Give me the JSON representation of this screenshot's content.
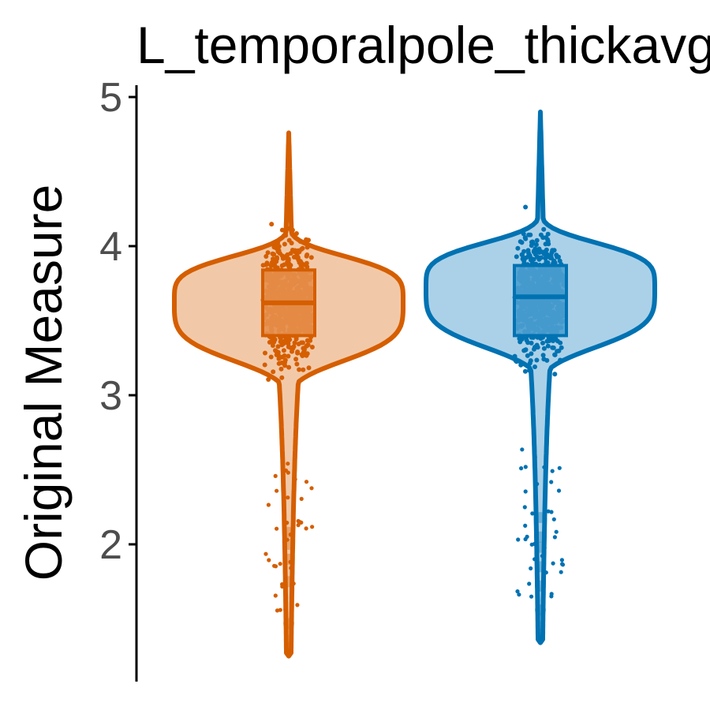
{
  "chart_data": {
    "type": "violin",
    "title": "L_temporalpole_thickavg",
    "xlabel": "",
    "ylabel": "Original Measure",
    "ylim": [
      1.1,
      5.05
    ],
    "yticks": [
      2,
      3,
      4,
      5
    ],
    "grid": false,
    "legend": "none",
    "series": [
      {
        "color": "#d55e00",
        "fill": "#f2c9a8",
        "box_fill": "#e58f4c",
        "min": 1.25,
        "max": 4.76,
        "q1": 3.4,
        "median": 3.62,
        "q3": 3.84,
        "density_peak": 3.63,
        "outliers": [
          2.08,
          2.0,
          1.9,
          1.75,
          1.47
        ]
      },
      {
        "color": "#0072b2",
        "fill": "#abd1e8",
        "box_fill": "#4d9fcf",
        "min": 1.34,
        "max": 4.9,
        "q1": 3.4,
        "median": 3.66,
        "q3": 3.87,
        "density_peak": 3.72,
        "outliers": [
          2.18,
          2.05,
          1.98,
          1.85,
          1.72,
          1.56
        ]
      }
    ]
  }
}
